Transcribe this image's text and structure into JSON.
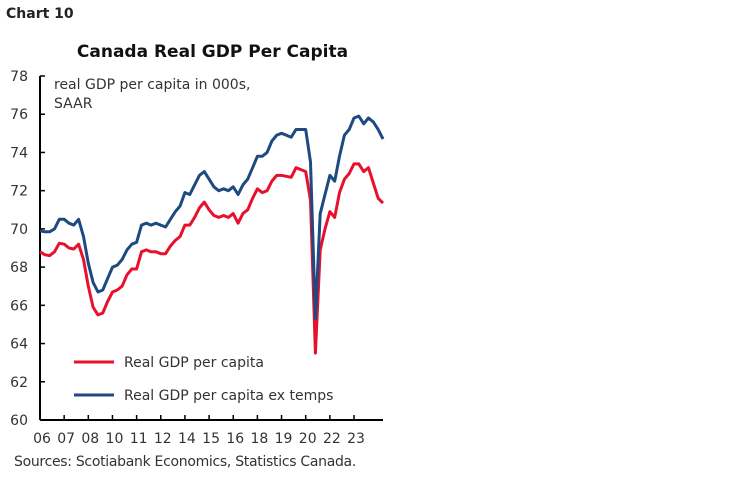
{
  "chart_label": "Chart 10",
  "chart_data": {
    "type": "line",
    "title": "Canada Real GDP Per Capita",
    "ylabel": "real GDP per capita in 000s, SAAR",
    "ylabel_lines": [
      "real GDP per capita in 000s,",
      "SAAR"
    ],
    "ylim": [
      60,
      78
    ],
    "yticks": [
      60,
      62,
      64,
      66,
      68,
      70,
      72,
      74,
      76,
      78
    ],
    "x_start": "2006Q1",
    "x_frequency": "quarterly",
    "xtick_labels": [
      "06",
      "07",
      "08",
      "10",
      "11",
      "12",
      "14",
      "15",
      "16",
      "18",
      "19",
      "20",
      "22",
      "23"
    ],
    "grid": false,
    "legend_position": "bottom-left",
    "series": [
      {
        "name": "Real GDP per capita",
        "color": "#e8112d",
        "values": [
          68.8,
          68.65,
          68.6,
          68.8,
          69.25,
          69.2,
          69.0,
          68.95,
          69.2,
          68.4,
          67.0,
          65.9,
          65.5,
          65.6,
          66.2,
          66.7,
          66.8,
          67.0,
          67.6,
          67.9,
          67.9,
          68.8,
          68.9,
          68.8,
          68.8,
          68.7,
          68.7,
          69.1,
          69.4,
          69.6,
          70.2,
          70.2,
          70.6,
          71.1,
          71.4,
          71.0,
          70.7,
          70.6,
          70.7,
          70.6,
          70.8,
          70.3,
          70.8,
          71.0,
          71.6,
          72.1,
          71.9,
          72.0,
          72.5,
          72.8,
          72.8,
          72.75,
          72.7,
          73.2,
          73.1,
          73.0,
          71.5,
          63.5,
          68.9,
          70.0,
          70.9,
          70.6,
          71.9,
          72.6,
          72.9,
          73.4,
          73.4,
          73.0,
          73.2,
          72.4,
          71.6,
          71.35
        ]
      },
      {
        "name": "Real GDP per capita ex temps",
        "color": "#1d4a80",
        "values": [
          69.9,
          69.85,
          69.85,
          70.0,
          70.5,
          70.5,
          70.3,
          70.2,
          70.5,
          69.6,
          68.2,
          67.2,
          66.7,
          66.8,
          67.4,
          68.0,
          68.1,
          68.4,
          68.9,
          69.2,
          69.3,
          70.2,
          70.3,
          70.2,
          70.3,
          70.2,
          70.1,
          70.5,
          70.9,
          71.2,
          71.9,
          71.8,
          72.3,
          72.8,
          73.0,
          72.6,
          72.2,
          72.0,
          72.1,
          72.0,
          72.2,
          71.8,
          72.3,
          72.6,
          73.2,
          73.8,
          73.8,
          74.0,
          74.6,
          74.9,
          75.0,
          74.9,
          74.8,
          75.2,
          75.2,
          75.2,
          73.5,
          65.3,
          70.8,
          71.8,
          72.8,
          72.5,
          73.8,
          74.9,
          75.2,
          75.8,
          75.9,
          75.5,
          75.8,
          75.6,
          75.2,
          74.7
        ]
      }
    ]
  },
  "source": "Sources: Scotiabank Economics, Statistics Canada."
}
